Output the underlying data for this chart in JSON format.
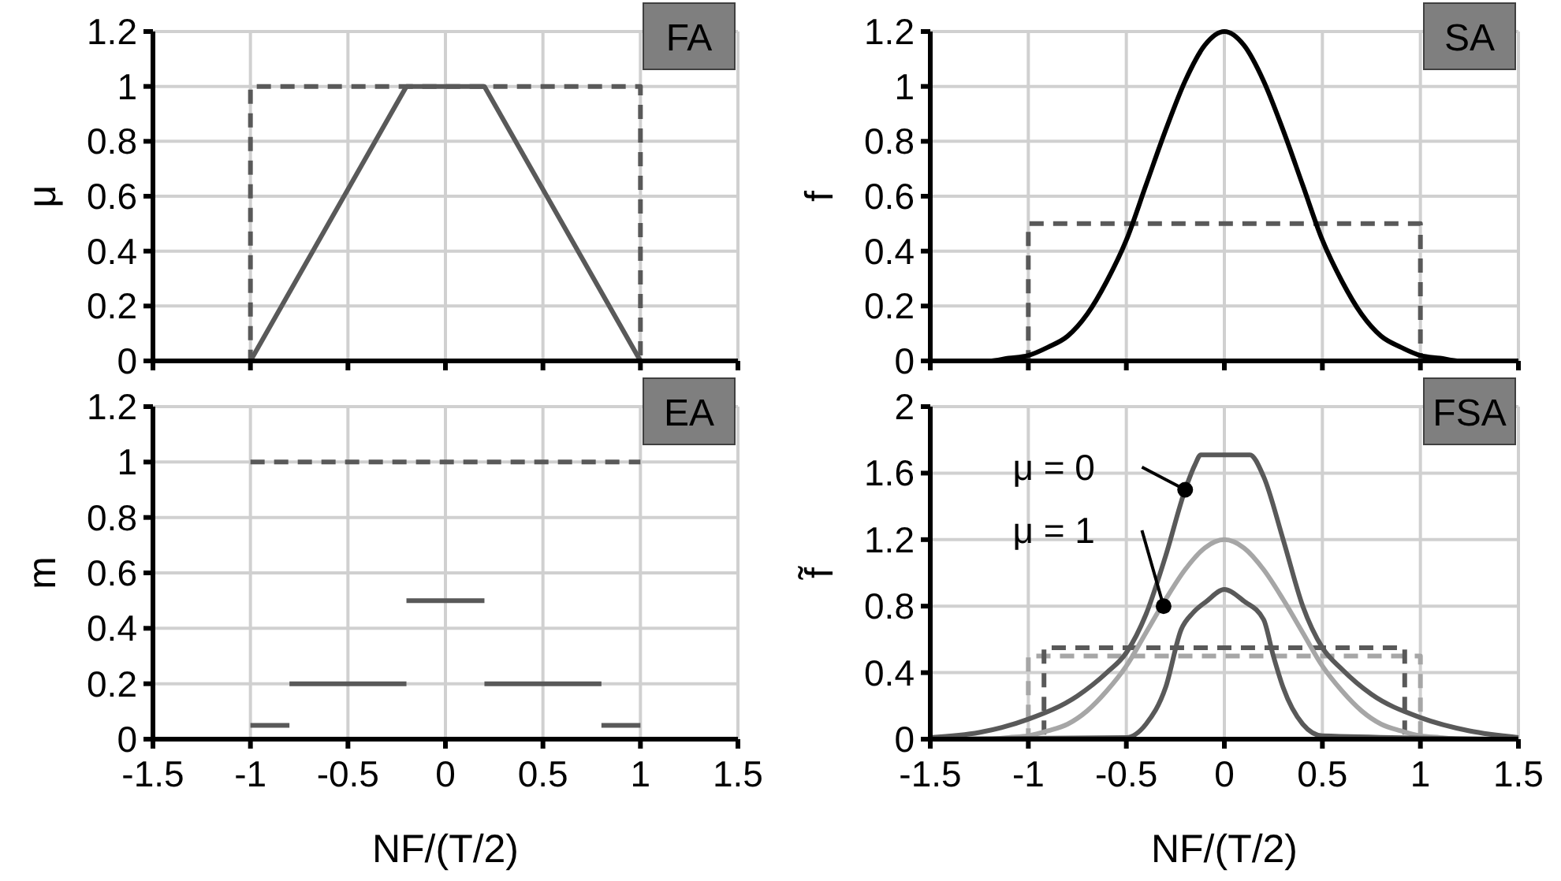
{
  "chart_data": [
    {
      "type": "line",
      "title": "FA",
      "ylabel": "μ",
      "xlim": [
        -1.5,
        1.5
      ],
      "xticks": [
        -1.5,
        -1,
        -0.5,
        0,
        0.5,
        1,
        1.5
      ],
      "ylim": [
        0,
        1.2
      ],
      "yticks": [
        0,
        0.2,
        0.4,
        0.6,
        0.8,
        1,
        1.2
      ],
      "grid": true,
      "tick_labels": "y",
      "series": [
        {
          "color": "#595959",
          "line_style": "dashed",
          "x": [
            -1.5,
            -1,
            -1,
            1,
            1,
            1.5
          ],
          "values": [
            0,
            0,
            1,
            1,
            0,
            0
          ]
        },
        {
          "color": "#595959",
          "line_style": "solid",
          "x": [
            -1.5,
            -1,
            -0.2,
            0.2,
            1,
            1.5
          ],
          "values": [
            0,
            0,
            1,
            1,
            0,
            0
          ]
        }
      ]
    },
    {
      "type": "line",
      "title": "SA",
      "ylabel": "f",
      "xlim": [
        -1.5,
        1.5
      ],
      "xticks": [
        -1.5,
        -1,
        -0.5,
        0,
        0.5,
        1,
        1.5
      ],
      "ylim": [
        0,
        1.2
      ],
      "yticks": [
        0,
        0.2,
        0.4,
        0.6,
        0.8,
        1,
        1.2
      ],
      "grid": true,
      "tick_labels": "y",
      "series": [
        {
          "color": "#595959",
          "line_style": "dashed",
          "x": [
            -1.5,
            -1,
            -1,
            1,
            1,
            1.5
          ],
          "values": [
            0,
            0,
            0.5,
            0.5,
            0,
            0
          ]
        },
        {
          "color": "#000000",
          "line_style": "solid",
          "x": [
            -1.5,
            -1.3,
            -1.2,
            -1.1,
            -1,
            -0.9,
            -0.8,
            -0.7,
            -0.6,
            -0.5,
            -0.4,
            -0.3,
            -0.2,
            -0.1,
            0,
            0.1,
            0.2,
            0.3,
            0.4,
            0.5,
            0.6,
            0.7,
            0.8,
            0.9,
            1,
            1.1,
            1.2,
            1.3,
            1.5
          ],
          "values": [
            0,
            0,
            0,
            0.01,
            0.02,
            0.05,
            0.09,
            0.17,
            0.29,
            0.44,
            0.64,
            0.84,
            1.02,
            1.15,
            1.2,
            1.15,
            1.02,
            0.84,
            0.64,
            0.44,
            0.29,
            0.17,
            0.09,
            0.05,
            0.02,
            0.01,
            0,
            0,
            0
          ]
        }
      ]
    },
    {
      "type": "line",
      "ylabel": "m",
      "xlabel": "NF/(T/2)",
      "xlim": [
        -1.5,
        1.5
      ],
      "xticks": [
        -1.5,
        -1,
        -0.5,
        0,
        0.5,
        1,
        1.5
      ],
      "ylim": [
        0,
        1.2
      ],
      "yticks": [
        0,
        0.2,
        0.4,
        0.6,
        0.8,
        1,
        1.2
      ],
      "grid": true,
      "title": "EA",
      "series": [
        {
          "color": "#595959",
          "line_style": "dashed",
          "x": [
            -1,
            1
          ],
          "values": [
            1,
            1
          ]
        },
        {
          "color": "#595959",
          "line_style": "solid",
          "x": [
            -1,
            -0.8
          ],
          "values": [
            0.05,
            0.05
          ]
        },
        {
          "color": "#595959",
          "line_style": "solid",
          "x": [
            -0.8,
            -0.2
          ],
          "values": [
            0.2,
            0.2
          ]
        },
        {
          "color": "#595959",
          "line_style": "solid",
          "x": [
            -0.2,
            0.2
          ],
          "values": [
            0.5,
            0.5
          ]
        },
        {
          "color": "#595959",
          "line_style": "solid",
          "x": [
            0.2,
            0.8
          ],
          "values": [
            0.2,
            0.2
          ]
        },
        {
          "color": "#595959",
          "line_style": "solid",
          "x": [
            0.8,
            1
          ],
          "values": [
            0.05,
            0.05
          ]
        }
      ]
    },
    {
      "type": "line",
      "title": "FSA",
      "ylabel": "f̃",
      "xlabel": "NF/(T/2)",
      "xlim": [
        -1.5,
        1.5
      ],
      "xticks": [
        -1.5,
        -1,
        -0.5,
        0,
        0.5,
        1,
        1.5
      ],
      "ylim": [
        0,
        2
      ],
      "yticks": [
        0,
        0.4,
        0.8,
        1.2,
        1.6,
        2
      ],
      "grid": true,
      "annotations": [
        {
          "text": "μ = 0",
          "x": -0.2,
          "y": 1.5
        },
        {
          "text": "μ = 1",
          "x": -0.31,
          "y": 0.8
        }
      ],
      "series": [
        {
          "color": "#a6a6a6",
          "line_style": "dashed",
          "x": [
            -1.5,
            -1,
            -1,
            1,
            1,
            1.5
          ],
          "values": [
            0,
            0,
            0.5,
            0.5,
            0,
            0
          ]
        },
        {
          "color": "#595959",
          "line_style": "dashed",
          "x": [
            -1.5,
            -0.92,
            -0.92,
            0.92,
            0.92,
            1.5
          ],
          "values": [
            0,
            0,
            0.55,
            0.55,
            0,
            0
          ]
        },
        {
          "color": "#a6a6a6",
          "line_style": "solid",
          "x": [
            -1.5,
            -1.3,
            -1.2,
            -1.1,
            -1,
            -0.9,
            -0.8,
            -0.7,
            -0.6,
            -0.5,
            -0.4,
            -0.3,
            -0.2,
            -0.1,
            0,
            0.1,
            0.2,
            0.3,
            0.4,
            0.5,
            0.6,
            0.7,
            0.8,
            0.9,
            1,
            1.1,
            1.2,
            1.3,
            1.5
          ],
          "values": [
            0,
            0,
            0,
            0.01,
            0.02,
            0.05,
            0.09,
            0.17,
            0.29,
            0.44,
            0.64,
            0.84,
            1.02,
            1.15,
            1.2,
            1.15,
            1.02,
            0.84,
            0.64,
            0.44,
            0.29,
            0.17,
            0.09,
            0.05,
            0.02,
            0.01,
            0,
            0,
            0
          ]
        },
        {
          "color": "#595959",
          "line_style": "solid",
          "x": [
            -1.5,
            -1.25,
            -1,
            -0.75,
            -0.6,
            -0.5,
            -0.4,
            -0.3,
            -0.2,
            -0.15,
            -0.12,
            0.13,
            0.2,
            0.3,
            0.4,
            0.5,
            0.6,
            0.75,
            1,
            1.25,
            1.5
          ],
          "values": [
            0.01,
            0.04,
            0.12,
            0.26,
            0.4,
            0.52,
            0.75,
            1.1,
            1.5,
            1.65,
            1.71,
            1.71,
            1.58,
            1.2,
            0.8,
            0.55,
            0.42,
            0.27,
            0.13,
            0.05,
            0.01
          ]
        },
        {
          "color": "#595959",
          "line_style": "solid",
          "x": [
            -1.5,
            -0.5,
            -0.4,
            -0.3,
            -0.22,
            -0.16,
            -0.09,
            0,
            0.1,
            0.2,
            0.25,
            0.3,
            0.4,
            0.5,
            1.5
          ],
          "values": [
            0,
            0.01,
            0.09,
            0.31,
            0.66,
            0.76,
            0.83,
            0.9,
            0.83,
            0.72,
            0.5,
            0.31,
            0.09,
            0.02,
            0
          ]
        }
      ]
    }
  ]
}
